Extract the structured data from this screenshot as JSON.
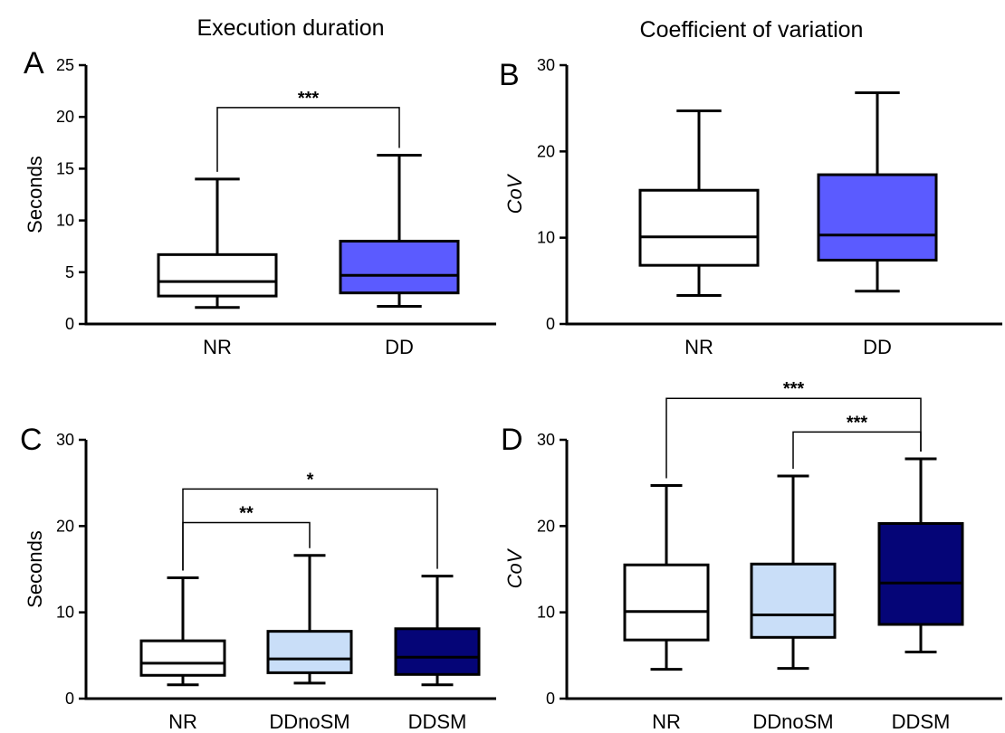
{
  "column_titles": [
    "Execution duration",
    "Coefficient of variation"
  ],
  "colors": {
    "white": "#ffffff",
    "dd_blue": "#5b5bff",
    "light_blue": "#c9def8",
    "navy": "#050577",
    "axis": "#000000"
  },
  "chart_data": [
    {
      "panel": "A",
      "type": "box",
      "ylabel": "Seconds",
      "ylabel_italic": false,
      "ylim": [
        0,
        25
      ],
      "yticks": [
        0,
        5,
        10,
        15,
        20,
        25
      ],
      "categories": [
        "NR",
        "DD"
      ],
      "fill_colors": [
        "#ffffff",
        "#5b5bff"
      ],
      "boxes": [
        {
          "min": 1.6,
          "q1": 2.7,
          "median": 4.1,
          "q3": 6.7,
          "max": 14.0
        },
        {
          "min": 1.7,
          "q1": 3.0,
          "median": 4.7,
          "q3": 8.0,
          "max": 16.3
        }
      ],
      "significance": [
        {
          "between": [
            0,
            1
          ],
          "label": "***",
          "y": 20.9
        }
      ]
    },
    {
      "panel": "B",
      "type": "box",
      "ylabel": "CoV",
      "ylabel_italic": true,
      "ylim": [
        0,
        30
      ],
      "yticks": [
        0,
        10,
        20,
        30
      ],
      "categories": [
        "NR",
        "DD"
      ],
      "fill_colors": [
        "#ffffff",
        "#5b5bff"
      ],
      "boxes": [
        {
          "min": 3.3,
          "q1": 6.8,
          "median": 10.1,
          "q3": 15.5,
          "max": 24.7
        },
        {
          "min": 3.8,
          "q1": 7.4,
          "median": 10.3,
          "q3": 17.3,
          "max": 26.8
        }
      ],
      "significance": []
    },
    {
      "panel": "C",
      "type": "box",
      "ylabel": "Seconds",
      "ylabel_italic": false,
      "ylim": [
        0,
        30
      ],
      "yticks": [
        0,
        10,
        20,
        30
      ],
      "categories": [
        "NR",
        "DDnoSM",
        "DDSM"
      ],
      "fill_colors": [
        "#ffffff",
        "#c9def8",
        "#050577"
      ],
      "boxes": [
        {
          "min": 1.6,
          "q1": 2.7,
          "median": 4.1,
          "q3": 6.7,
          "max": 14.0
        },
        {
          "min": 1.8,
          "q1": 3.0,
          "median": 4.6,
          "q3": 7.8,
          "max": 16.6
        },
        {
          "min": 1.6,
          "q1": 2.8,
          "median": 4.8,
          "q3": 8.1,
          "max": 14.2
        }
      ],
      "significance": [
        {
          "between": [
            0,
            1
          ],
          "label": "**",
          "y": 20.4
        },
        {
          "between": [
            0,
            2
          ],
          "label": "*",
          "y": 24.3
        }
      ]
    },
    {
      "panel": "D",
      "type": "box",
      "ylabel": "CoV",
      "ylabel_italic": true,
      "ylim": [
        0,
        30
      ],
      "yticks": [
        0,
        10,
        20,
        30
      ],
      "categories": [
        "NR",
        "DDnoSM",
        "DDSM"
      ],
      "fill_colors": [
        "#ffffff",
        "#c9def8",
        "#050577"
      ],
      "boxes": [
        {
          "min": 3.4,
          "q1": 6.8,
          "median": 10.1,
          "q3": 15.5,
          "max": 24.7
        },
        {
          "min": 3.5,
          "q1": 7.1,
          "median": 9.7,
          "q3": 15.6,
          "max": 25.8
        },
        {
          "min": 5.4,
          "q1": 8.6,
          "median": 13.4,
          "q3": 20.3,
          "max": 27.8
        }
      ],
      "significance": [
        {
          "between": [
            1,
            2
          ],
          "label": "***",
          "y": 30.9
        },
        {
          "between": [
            0,
            2
          ],
          "label": "***",
          "y": 34.8
        }
      ]
    }
  ]
}
